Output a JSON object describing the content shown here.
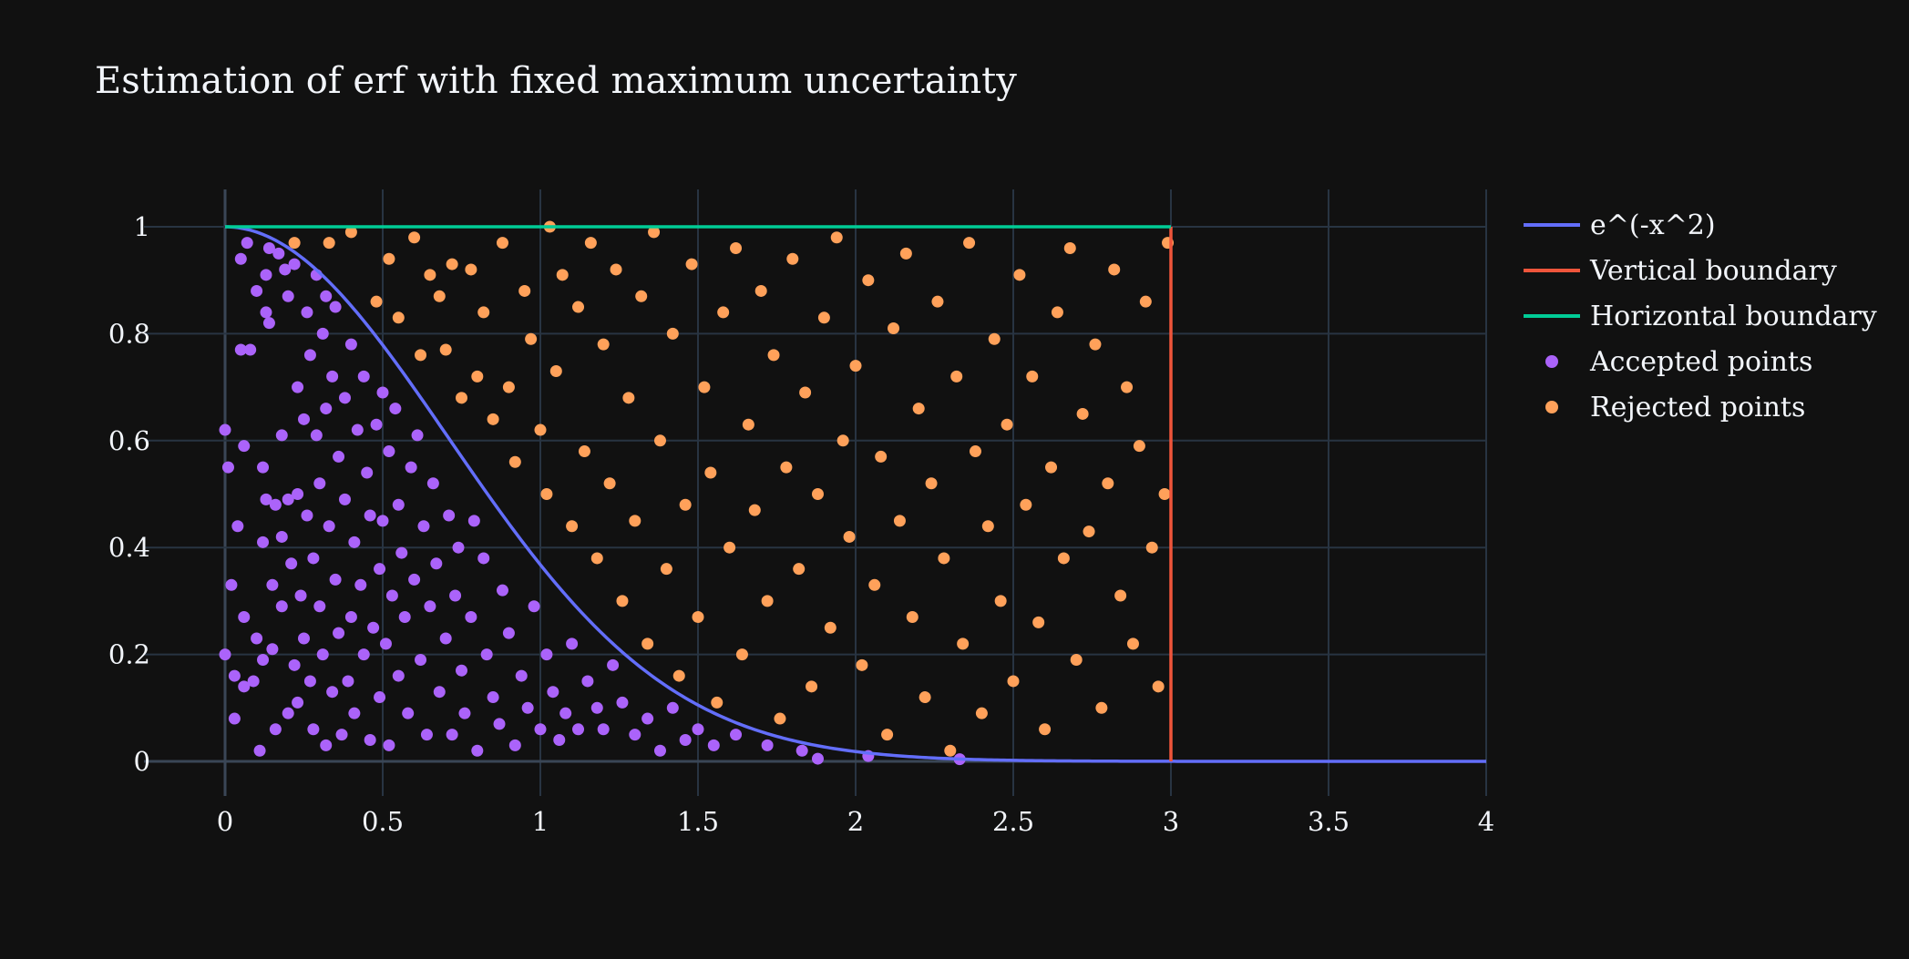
{
  "chart_data": {
    "type": "scatter",
    "title": "Estimation of erf with fixed maximum uncertainty",
    "xlabel": "",
    "ylabel": "",
    "xlim": [
      -0.25,
      4
    ],
    "ylim": [
      -0.07,
      1.07
    ],
    "x_ticks": [
      0,
      0.5,
      1,
      1.5,
      2,
      2.5,
      3,
      3.5,
      4
    ],
    "x_tick_labels": [
      "0",
      "0.5",
      "1",
      "1.5",
      "2",
      "2.5",
      "3",
      "3.5",
      "4"
    ],
    "y_ticks": [
      0,
      0.2,
      0.4,
      0.6,
      0.8,
      1
    ],
    "y_tick_labels": [
      "0",
      "0.2",
      "0.4",
      "0.6",
      "0.8",
      "1"
    ],
    "grid": true,
    "legend_position": "top-right",
    "series": [
      {
        "name": "e^(-x^2)",
        "kind": "line",
        "color": "#636efa",
        "function": "exp(-x^2)",
        "x_range": [
          0,
          4
        ]
      },
      {
        "name": "Vertical boundary",
        "kind": "line",
        "color": "#ef553b",
        "x": [
          3,
          3
        ],
        "y": [
          0,
          1
        ]
      },
      {
        "name": "Horizontal boundary",
        "kind": "line",
        "color": "#00cc96",
        "x": [
          0,
          3
        ],
        "y": [
          1,
          1
        ]
      },
      {
        "name": "Accepted points",
        "kind": "markers",
        "color": "#ab63fa",
        "points": [
          [
            0.0,
            0.62
          ],
          [
            0.01,
            0.55
          ],
          [
            0.02,
            0.33
          ],
          [
            0.03,
            0.08
          ],
          [
            0.0,
            0.2
          ],
          [
            0.03,
            0.16
          ],
          [
            0.04,
            0.44
          ],
          [
            0.05,
            0.94
          ],
          [
            0.05,
            0.77
          ],
          [
            0.06,
            0.59
          ],
          [
            0.06,
            0.27
          ],
          [
            0.06,
            0.14
          ],
          [
            0.07,
            0.97
          ],
          [
            0.08,
            0.77
          ],
          [
            0.09,
            0.15
          ],
          [
            0.1,
            0.88
          ],
          [
            0.1,
            0.23
          ],
          [
            0.11,
            0.02
          ],
          [
            0.12,
            0.55
          ],
          [
            0.12,
            0.41
          ],
          [
            0.12,
            0.19
          ],
          [
            0.13,
            0.91
          ],
          [
            0.13,
            0.84
          ],
          [
            0.13,
            0.49
          ],
          [
            0.14,
            0.96
          ],
          [
            0.14,
            0.82
          ],
          [
            0.15,
            0.33
          ],
          [
            0.15,
            0.21
          ],
          [
            0.16,
            0.48
          ],
          [
            0.16,
            0.06
          ],
          [
            0.17,
            0.95
          ],
          [
            0.18,
            0.61
          ],
          [
            0.18,
            0.42
          ],
          [
            0.18,
            0.29
          ],
          [
            0.19,
            0.92
          ],
          [
            0.2,
            0.87
          ],
          [
            0.2,
            0.49
          ],
          [
            0.2,
            0.09
          ],
          [
            0.21,
            0.37
          ],
          [
            0.22,
            0.93
          ],
          [
            0.22,
            0.18
          ],
          [
            0.23,
            0.7
          ],
          [
            0.23,
            0.5
          ],
          [
            0.23,
            0.11
          ],
          [
            0.24,
            0.31
          ],
          [
            0.25,
            0.64
          ],
          [
            0.25,
            0.23
          ],
          [
            0.26,
            0.84
          ],
          [
            0.26,
            0.46
          ],
          [
            0.27,
            0.76
          ],
          [
            0.27,
            0.15
          ],
          [
            0.28,
            0.38
          ],
          [
            0.28,
            0.06
          ],
          [
            0.29,
            0.91
          ],
          [
            0.29,
            0.61
          ],
          [
            0.3,
            0.52
          ],
          [
            0.3,
            0.29
          ],
          [
            0.31,
            0.8
          ],
          [
            0.31,
            0.2
          ],
          [
            0.32,
            0.87
          ],
          [
            0.32,
            0.66
          ],
          [
            0.32,
            0.03
          ],
          [
            0.33,
            0.44
          ],
          [
            0.34,
            0.72
          ],
          [
            0.34,
            0.13
          ],
          [
            0.35,
            0.85
          ],
          [
            0.35,
            0.34
          ],
          [
            0.36,
            0.57
          ],
          [
            0.36,
            0.24
          ],
          [
            0.37,
            0.05
          ],
          [
            0.38,
            0.68
          ],
          [
            0.38,
            0.49
          ],
          [
            0.39,
            0.15
          ],
          [
            0.4,
            0.78
          ],
          [
            0.4,
            0.27
          ],
          [
            0.41,
            0.41
          ],
          [
            0.41,
            0.09
          ],
          [
            0.42,
            0.62
          ],
          [
            0.43,
            0.33
          ],
          [
            0.44,
            0.72
          ],
          [
            0.44,
            0.2
          ],
          [
            0.45,
            0.54
          ],
          [
            0.46,
            0.04
          ],
          [
            0.46,
            0.46
          ],
          [
            0.47,
            0.25
          ],
          [
            0.48,
            0.63
          ],
          [
            0.49,
            0.36
          ],
          [
            0.49,
            0.12
          ],
          [
            0.5,
            0.69
          ],
          [
            0.5,
            0.45
          ],
          [
            0.51,
            0.22
          ],
          [
            0.52,
            0.58
          ],
          [
            0.52,
            0.03
          ],
          [
            0.53,
            0.31
          ],
          [
            0.54,
            0.66
          ],
          [
            0.55,
            0.48
          ],
          [
            0.55,
            0.16
          ],
          [
            0.56,
            0.39
          ],
          [
            0.57,
            0.27
          ],
          [
            0.58,
            0.09
          ],
          [
            0.59,
            0.55
          ],
          [
            0.6,
            0.34
          ],
          [
            0.61,
            0.61
          ],
          [
            0.62,
            0.19
          ],
          [
            0.63,
            0.44
          ],
          [
            0.64,
            0.05
          ],
          [
            0.65,
            0.29
          ],
          [
            0.66,
            0.52
          ],
          [
            0.67,
            0.37
          ],
          [
            0.68,
            0.13
          ],
          [
            0.7,
            0.23
          ],
          [
            0.71,
            0.46
          ],
          [
            0.72,
            0.05
          ],
          [
            0.73,
            0.31
          ],
          [
            0.74,
            0.4
          ],
          [
            0.75,
            0.17
          ],
          [
            0.76,
            0.09
          ],
          [
            0.78,
            0.27
          ],
          [
            0.79,
            0.45
          ],
          [
            0.8,
            0.02
          ],
          [
            0.82,
            0.38
          ],
          [
            0.83,
            0.2
          ],
          [
            0.85,
            0.12
          ],
          [
            0.87,
            0.07
          ],
          [
            0.88,
            0.32
          ],
          [
            0.9,
            0.24
          ],
          [
            0.92,
            0.03
          ],
          [
            0.94,
            0.16
          ],
          [
            0.96,
            0.1
          ],
          [
            0.98,
            0.29
          ],
          [
            1.0,
            0.06
          ],
          [
            1.02,
            0.2
          ],
          [
            1.04,
            0.13
          ],
          [
            1.06,
            0.04
          ],
          [
            1.08,
            0.09
          ],
          [
            1.1,
            0.22
          ],
          [
            1.12,
            0.06
          ],
          [
            1.15,
            0.15
          ],
          [
            1.18,
            0.1
          ],
          [
            1.2,
            0.06
          ],
          [
            1.23,
            0.18
          ],
          [
            1.26,
            0.11
          ],
          [
            1.3,
            0.05
          ],
          [
            1.34,
            0.08
          ],
          [
            1.38,
            0.02
          ],
          [
            1.42,
            0.1
          ],
          [
            1.46,
            0.04
          ],
          [
            1.5,
            0.06
          ],
          [
            1.55,
            0.03
          ],
          [
            1.62,
            0.05
          ],
          [
            1.72,
            0.03
          ],
          [
            1.83,
            0.02
          ],
          [
            1.88,
            0.005
          ],
          [
            2.04,
            0.01
          ],
          [
            2.33,
            0.004
          ]
        ]
      },
      {
        "name": "Rejected points",
        "kind": "markers",
        "color": "#ffa15a",
        "points": [
          [
            0.22,
            0.97
          ],
          [
            0.33,
            0.97
          ],
          [
            0.4,
            0.99
          ],
          [
            0.48,
            0.86
          ],
          [
            0.52,
            0.94
          ],
          [
            0.55,
            0.83
          ],
          [
            0.6,
            0.98
          ],
          [
            0.62,
            0.76
          ],
          [
            0.65,
            0.91
          ],
          [
            0.68,
            0.87
          ],
          [
            0.7,
            0.77
          ],
          [
            0.72,
            0.93
          ],
          [
            0.75,
            0.68
          ],
          [
            0.78,
            0.92
          ],
          [
            0.8,
            0.72
          ],
          [
            0.82,
            0.84
          ],
          [
            0.85,
            0.64
          ],
          [
            0.88,
            0.97
          ],
          [
            0.9,
            0.7
          ],
          [
            0.92,
            0.56
          ],
          [
            0.95,
            0.88
          ],
          [
            0.97,
            0.79
          ],
          [
            1.0,
            0.62
          ],
          [
            1.02,
            0.5
          ],
          [
            1.03,
            1.0
          ],
          [
            1.05,
            0.73
          ],
          [
            1.07,
            0.91
          ],
          [
            1.1,
            0.44
          ],
          [
            1.12,
            0.85
          ],
          [
            1.14,
            0.58
          ],
          [
            1.16,
            0.97
          ],
          [
            1.18,
            0.38
          ],
          [
            1.2,
            0.78
          ],
          [
            1.22,
            0.52
          ],
          [
            1.24,
            0.92
          ],
          [
            1.26,
            0.3
          ],
          [
            1.28,
            0.68
          ],
          [
            1.3,
            0.45
          ],
          [
            1.32,
            0.87
          ],
          [
            1.34,
            0.22
          ],
          [
            1.36,
            0.99
          ],
          [
            1.38,
            0.6
          ],
          [
            1.4,
            0.36
          ],
          [
            1.42,
            0.8
          ],
          [
            1.44,
            0.16
          ],
          [
            1.46,
            0.48
          ],
          [
            1.48,
            0.93
          ],
          [
            1.5,
            0.27
          ],
          [
            1.52,
            0.7
          ],
          [
            1.54,
            0.54
          ],
          [
            1.56,
            0.11
          ],
          [
            1.58,
            0.84
          ],
          [
            1.6,
            0.4
          ],
          [
            1.62,
            0.96
          ],
          [
            1.64,
            0.2
          ],
          [
            1.66,
            0.63
          ],
          [
            1.68,
            0.47
          ],
          [
            1.7,
            0.88
          ],
          [
            1.72,
            0.3
          ],
          [
            1.74,
            0.76
          ],
          [
            1.76,
            0.08
          ],
          [
            1.78,
            0.55
          ],
          [
            1.8,
            0.94
          ],
          [
            1.82,
            0.36
          ],
          [
            1.84,
            0.69
          ],
          [
            1.86,
            0.14
          ],
          [
            1.88,
            0.5
          ],
          [
            1.9,
            0.83
          ],
          [
            1.92,
            0.25
          ],
          [
            1.94,
            0.98
          ],
          [
            1.96,
            0.6
          ],
          [
            1.98,
            0.42
          ],
          [
            2.0,
            0.74
          ],
          [
            2.02,
            0.18
          ],
          [
            2.04,
            0.9
          ],
          [
            2.06,
            0.33
          ],
          [
            2.08,
            0.57
          ],
          [
            2.1,
            0.05
          ],
          [
            2.12,
            0.81
          ],
          [
            2.14,
            0.45
          ],
          [
            2.16,
            0.95
          ],
          [
            2.18,
            0.27
          ],
          [
            2.2,
            0.66
          ],
          [
            2.22,
            0.12
          ],
          [
            2.24,
            0.52
          ],
          [
            2.26,
            0.86
          ],
          [
            2.28,
            0.38
          ],
          [
            2.3,
            0.02
          ],
          [
            2.32,
            0.72
          ],
          [
            2.34,
            0.22
          ],
          [
            2.36,
            0.97
          ],
          [
            2.38,
            0.58
          ],
          [
            2.4,
            0.09
          ],
          [
            2.42,
            0.44
          ],
          [
            2.44,
            0.79
          ],
          [
            2.46,
            0.3
          ],
          [
            2.48,
            0.63
          ],
          [
            2.5,
            0.15
          ],
          [
            2.52,
            0.91
          ],
          [
            2.54,
            0.48
          ],
          [
            2.56,
            0.72
          ],
          [
            2.58,
            0.26
          ],
          [
            2.6,
            0.06
          ],
          [
            2.62,
            0.55
          ],
          [
            2.64,
            0.84
          ],
          [
            2.66,
            0.38
          ],
          [
            2.68,
            0.96
          ],
          [
            2.7,
            0.19
          ],
          [
            2.72,
            0.65
          ],
          [
            2.74,
            0.43
          ],
          [
            2.76,
            0.78
          ],
          [
            2.78,
            0.1
          ],
          [
            2.8,
            0.52
          ],
          [
            2.82,
            0.92
          ],
          [
            2.84,
            0.31
          ],
          [
            2.86,
            0.7
          ],
          [
            2.88,
            0.22
          ],
          [
            2.9,
            0.59
          ],
          [
            2.92,
            0.86
          ],
          [
            2.94,
            0.4
          ],
          [
            2.96,
            0.14
          ],
          [
            2.98,
            0.5
          ],
          [
            2.99,
            0.97
          ]
        ]
      }
    ]
  }
}
